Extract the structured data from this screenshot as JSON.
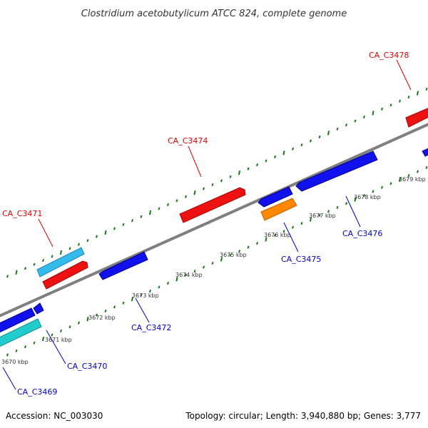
{
  "title": "Clostridium acetobutylicum ATCC 824, complete genome",
  "footer": {
    "accession": "Accession: NC_003030",
    "summary": "Topology: circular; Length: 3,940,880 bp; Genes: 3,777"
  },
  "colors": {
    "backbone": "#7f7f7f",
    "tick": "#1a7a1a",
    "forward_label": "#e00000",
    "reverse_label": "#0000cc",
    "forward_gene": "#ee1111",
    "forward_gene_alt": "#33bbee",
    "reverse_gene": "#1111ee",
    "reverse_gene_alt": "#22cccc",
    "reverse_gene_highlight": "#ff8800"
  },
  "scale": {
    "unit": "kbp",
    "labels": [
      "3670 kbp",
      "3671 kbp",
      "3672 kbp",
      "3673 kbp",
      "3674 kbp",
      "3675 kbp",
      "3676 kbp",
      "3677 kbp",
      "3678 kbp",
      "3679 kbp"
    ]
  },
  "genes": [
    {
      "label": "CA_C3469",
      "strand": "reverse",
      "color": "#1111ee"
    },
    {
      "label": "CA_C3470",
      "strand": "reverse",
      "color": "#22cccc"
    },
    {
      "label": "CA_C3471",
      "strand": "forward",
      "color": "#33bbee"
    },
    {
      "label": "CA_C3472",
      "strand": "reverse",
      "color": "#1111ee"
    },
    {
      "label": "CA_C3474",
      "strand": "forward",
      "color": "#ee1111"
    },
    {
      "label": "CA_C3475",
      "strand": "reverse",
      "color": "#ff8800"
    },
    {
      "label": "CA_C3476",
      "strand": "reverse",
      "color": "#1111ee"
    },
    {
      "label": "CA_C3478",
      "strand": "forward",
      "color": "#ee1111"
    }
  ]
}
